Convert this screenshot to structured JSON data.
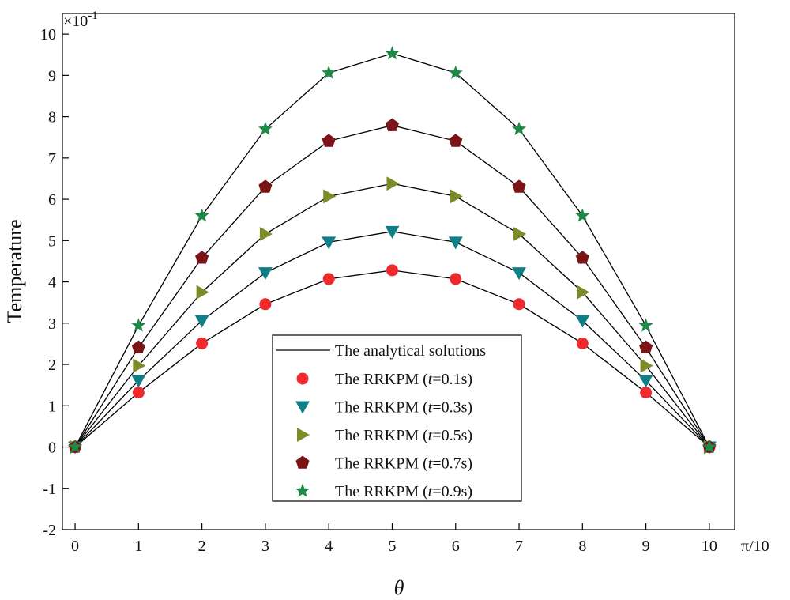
{
  "chart_data": {
    "type": "line",
    "title": "",
    "xlabel": "θ",
    "ylabel": "Temperature",
    "x_unit_label": "π/10",
    "y_multiplier_base": "×10",
    "y_multiplier_exp": "-1",
    "xlim": [
      -0.2,
      10.4
    ],
    "ylim": [
      -2,
      10.5
    ],
    "x_ticks": [
      0,
      1,
      2,
      3,
      4,
      5,
      6,
      7,
      8,
      9,
      10
    ],
    "y_ticks": [
      -2,
      -1,
      0,
      1,
      2,
      3,
      4,
      5,
      6,
      7,
      8,
      9,
      10
    ],
    "grid": false,
    "legend_position": "bottom-center",
    "x": [
      0,
      1,
      2,
      3,
      4,
      5,
      6,
      7,
      8,
      9,
      10
    ],
    "line_legend": "The analytical solutions",
    "line_color": "#000000",
    "series": [
      {
        "name_prefix": "The RRKPM (",
        "name_var": "t",
        "name_suffix": "=0.1s)",
        "marker": "circle",
        "color": "#ee2a2e",
        "values": [
          0,
          1.32,
          2.51,
          3.46,
          4.07,
          4.28,
          4.07,
          3.46,
          2.51,
          1.32,
          0
        ]
      },
      {
        "name_prefix": "The RRKPM (",
        "name_var": "t",
        "name_suffix": "=0.3s)",
        "marker": "triangle-down",
        "color": "#0f7f86",
        "values": [
          0,
          1.61,
          3.06,
          4.22,
          4.96,
          5.22,
          4.96,
          4.22,
          3.06,
          1.61,
          0
        ]
      },
      {
        "name_prefix": "The RRKPM (",
        "name_var": "t",
        "name_suffix": "=0.5s)",
        "marker": "triangle-right",
        "color": "#7f8a28",
        "values": [
          0,
          1.97,
          3.75,
          5.16,
          6.07,
          6.38,
          6.07,
          5.16,
          3.75,
          1.97,
          0
        ]
      },
      {
        "name_prefix": "The RRKPM (",
        "name_var": "t",
        "name_suffix": "=0.7s)",
        "marker": "pentagon",
        "color": "#7b1416",
        "values": [
          0,
          2.41,
          4.58,
          6.3,
          7.41,
          7.79,
          7.41,
          6.3,
          4.58,
          2.41,
          0
        ]
      },
      {
        "name_prefix": "The RRKPM (",
        "name_var": "t",
        "name_suffix": "=0.9s)",
        "marker": "star",
        "color": "#1d8a45",
        "values": [
          0,
          2.94,
          5.6,
          7.7,
          9.06,
          9.53,
          9.06,
          7.7,
          5.6,
          2.94,
          0
        ]
      }
    ]
  }
}
